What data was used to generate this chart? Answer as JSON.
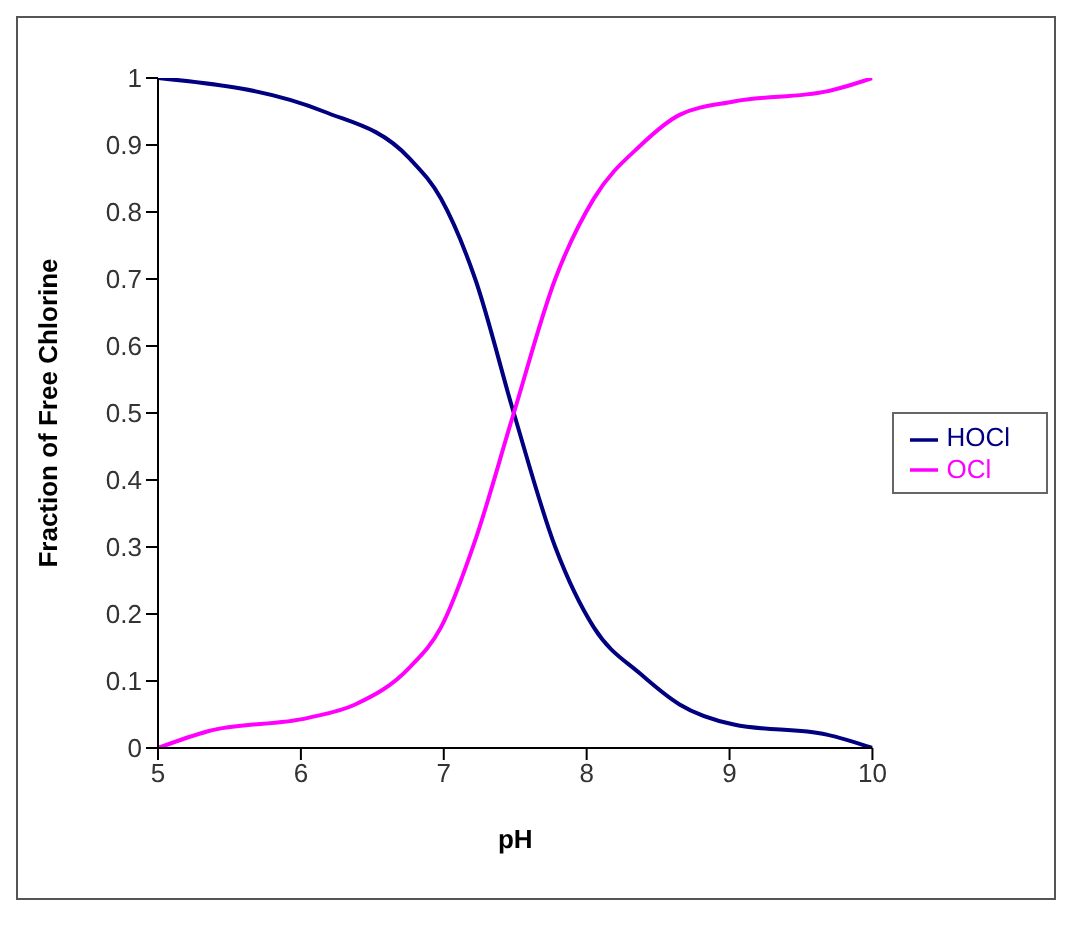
{
  "chart_data": {
    "type": "line",
    "xlabel": "pH",
    "ylabel": "Fraction of Free Chlorine",
    "xlim": [
      5,
      10
    ],
    "xticks": [
      5,
      6,
      7,
      8,
      9,
      10
    ],
    "ylim": [
      0,
      1
    ],
    "yticks": [
      0,
      0.1,
      0.2,
      0.3,
      0.4,
      0.5,
      0.6,
      0.7,
      0.8,
      0.9,
      1
    ],
    "grid": false,
    "legend": "right",
    "marker": "none",
    "line_style": "solid",
    "series": [
      {
        "name": "HOCl",
        "color": "#000080",
        "x": [
          5,
          6.16,
          6.76,
          6.98,
          7.22,
          7.49,
          7.78,
          8.05,
          8.38,
          8.65,
          9.03,
          9.68,
          10
        ],
        "values": [
          1,
          0.95,
          0.88,
          0.82,
          0.7,
          0.5,
          0.3,
          0.18,
          0.11,
          0.065,
          0.035,
          0.02,
          0
        ]
      },
      {
        "name": "OCl",
        "color": "#ff00ff",
        "x": [
          5,
          5.35,
          6.05,
          6.38,
          6.76,
          6.98,
          7.22,
          7.49,
          7.78,
          8.05,
          8.38,
          8.65,
          9.03,
          9.68,
          10
        ],
        "values": [
          0,
          0.025,
          0.045,
          0.065,
          0.12,
          0.18,
          0.31,
          0.5,
          0.7,
          0.82,
          0.9,
          0.945,
          0.965,
          0.98,
          1
        ]
      }
    ]
  }
}
